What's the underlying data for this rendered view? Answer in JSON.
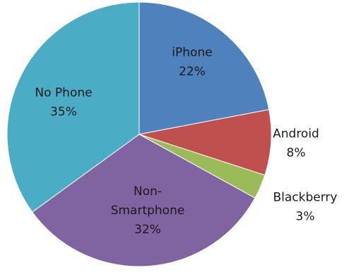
{
  "chart_data": {
    "type": "pie",
    "title": "",
    "start_angle_deg": 0,
    "direction": "clockwise",
    "legend": "none",
    "slices": [
      {
        "label_lines": [
          "iPhone"
        ],
        "percent_text": "22%",
        "value": 22,
        "color": "#4f81bd",
        "label_position": "inside"
      },
      {
        "label_lines": [
          "Android"
        ],
        "percent_text": "8%",
        "value": 8,
        "color": "#c0504d",
        "label_position": "outside"
      },
      {
        "label_lines": [
          "Blackberry"
        ],
        "percent_text": "3%",
        "value": 3,
        "color": "#9bbb59",
        "label_position": "outside"
      },
      {
        "label_lines": [
          "Non-",
          "Smartphone"
        ],
        "percent_text": "32%",
        "value": 32,
        "color": "#8064a2",
        "label_position": "inside"
      },
      {
        "label_lines": [
          "No Phone"
        ],
        "percent_text": "35%",
        "value": 35,
        "color": "#4bacc6",
        "label_position": "inside"
      }
    ]
  }
}
